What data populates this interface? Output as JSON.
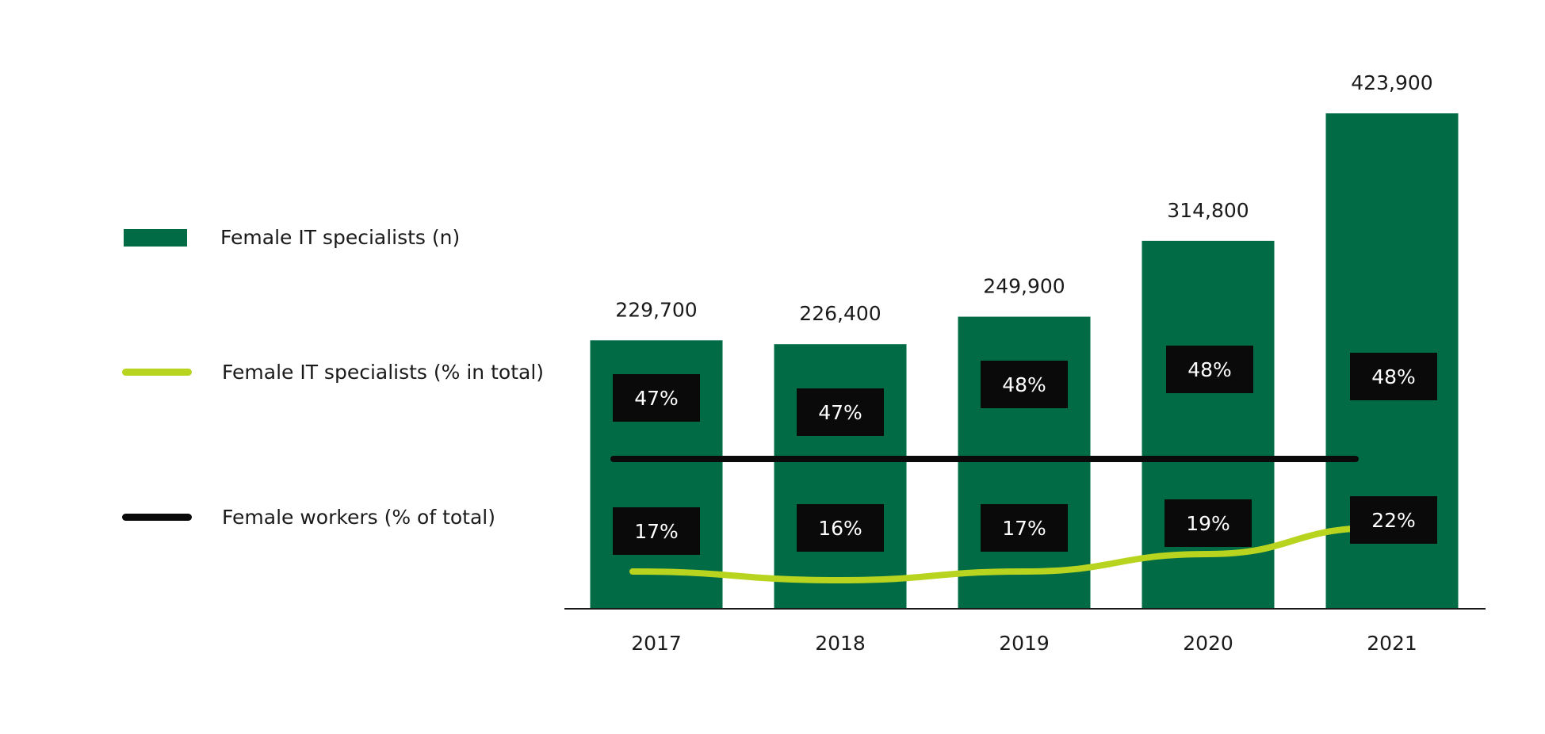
{
  "chart_data": {
    "type": "bar",
    "categories": [
      "2017",
      "2018",
      "2019",
      "2020",
      "2021"
    ],
    "series": [
      {
        "name": "Female IT specialists (n)",
        "type": "bar",
        "color": "#006b45",
        "values": [
          229700,
          226400,
          249900,
          314800,
          423900
        ],
        "labels": [
          "229,700",
          "226,400",
          "249,900",
          "314,800",
          "423,900"
        ]
      },
      {
        "name": "Female IT specialists (% in total)",
        "type": "line",
        "color": "#b8d41e",
        "values": [
          17,
          16,
          17,
          19,
          22
        ],
        "labels": [
          "17%",
          "16%",
          "17%",
          "19%",
          "22%"
        ]
      },
      {
        "name": "Female workers (% of total)",
        "type": "line",
        "color": "#0a0a0a",
        "values": [
          47,
          47,
          48,
          48,
          48
        ],
        "labels": [
          "47%",
          "47%",
          "48%",
          "48%",
          "48%"
        ]
      }
    ],
    "ylim": [
      0,
      423900
    ],
    "grid": false,
    "legend_position": "left"
  }
}
